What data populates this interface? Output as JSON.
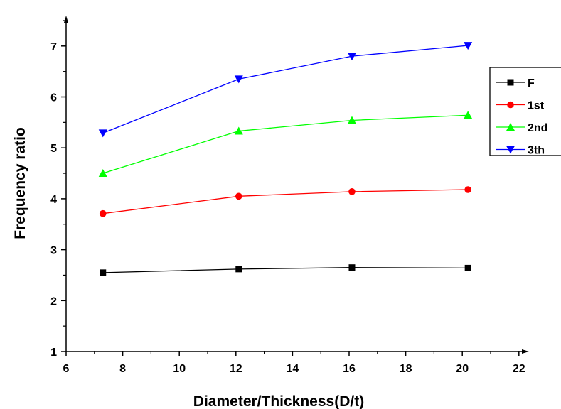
{
  "chart_data": {
    "type": "line",
    "xlabel": "Diameter/Thickness(D/t)",
    "ylabel": "Frequency ratio",
    "xlim": [
      6,
      22.5
    ],
    "ylim": [
      1,
      7.7
    ],
    "x_ticks": [
      6,
      8,
      10,
      12,
      14,
      16,
      18,
      20,
      22
    ],
    "y_ticks": [
      1,
      2,
      3,
      4,
      5,
      6,
      7
    ],
    "grid": false,
    "legend_position": "right",
    "x": [
      7.3,
      12.1,
      16.1,
      20.2
    ],
    "series": [
      {
        "name": "F",
        "color": "#000000",
        "marker": "square",
        "values": [
          2.55,
          2.62,
          2.65,
          2.64
        ]
      },
      {
        "name": "1st",
        "color": "#ff0000",
        "marker": "circle",
        "values": [
          3.71,
          4.05,
          4.14,
          4.18
        ]
      },
      {
        "name": "2nd",
        "color": "#00ff00",
        "marker": "triangle-up",
        "values": [
          4.5,
          5.33,
          5.54,
          5.64
        ]
      },
      {
        "name": "3th",
        "color": "#0000ff",
        "marker": "triangle-down",
        "values": [
          5.29,
          6.35,
          6.8,
          7.01
        ]
      }
    ]
  }
}
